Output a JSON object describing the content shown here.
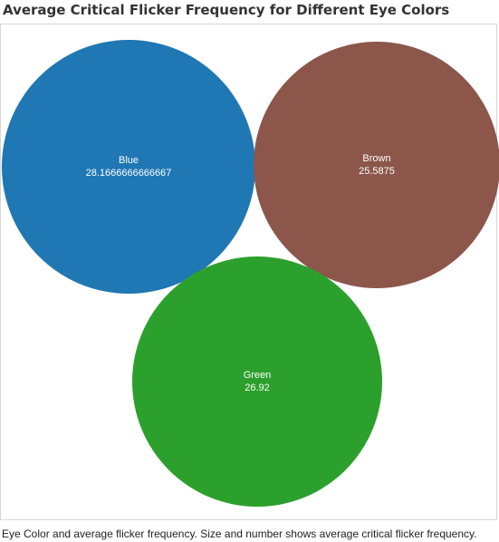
{
  "chart_data": {
    "type": "bubble",
    "title": "Average Critical Flicker Frequency for Different Eye Colors",
    "caption": "Eye Color and average flicker frequency. Size and number shows average critical flicker frequency.",
    "series": [
      {
        "name": "Blue",
        "value": "28.1666666666667",
        "color": "#1f77b4"
      },
      {
        "name": "Brown",
        "value": "25.5875",
        "color": "#8c564b"
      },
      {
        "name": "Green",
        "value": "26.92",
        "color": "#2ca02c"
      }
    ]
  }
}
